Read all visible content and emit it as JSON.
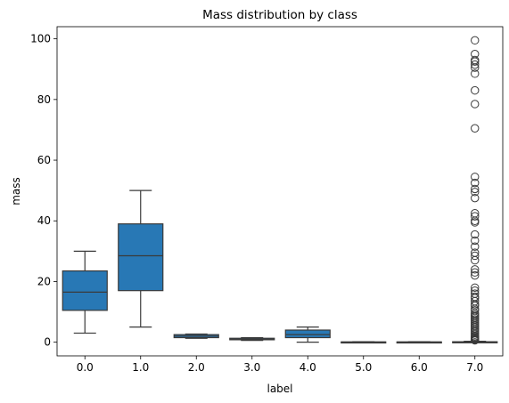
{
  "chart_data": {
    "type": "box",
    "title": "Mass distribution by class",
    "xlabel": "label",
    "ylabel": "mass",
    "categories": [
      "0.0",
      "1.0",
      "2.0",
      "3.0",
      "4.0",
      "5.0",
      "6.0",
      "7.0"
    ],
    "ylim": [
      -4.5,
      104
    ],
    "y_ticks": [
      0,
      20,
      40,
      60,
      80,
      100
    ],
    "y_tick_labels": [
      "0",
      "20",
      "40",
      "60",
      "80",
      "100"
    ],
    "grid": false,
    "legend": "none",
    "box_color": "#2878b5",
    "edge_color": "#3a3a3a",
    "boxes": [
      {
        "label": "0.0",
        "whisker_low": 3.0,
        "q1": 10.5,
        "median": 16.5,
        "q3": 23.5,
        "whisker_high": 30.0,
        "outliers": []
      },
      {
        "label": "1.0",
        "whisker_low": 5.0,
        "q1": 17.0,
        "median": 28.5,
        "q3": 39.0,
        "whisker_high": 50.0,
        "outliers": []
      },
      {
        "label": "2.0",
        "whisker_low": 1.3,
        "q1": 1.5,
        "median": 2.0,
        "q3": 2.5,
        "whisker_high": 2.7,
        "outliers": []
      },
      {
        "label": "3.0",
        "whisker_low": 0.6,
        "q1": 0.8,
        "median": 1.0,
        "q3": 1.3,
        "whisker_high": 1.5,
        "outliers": []
      },
      {
        "label": "4.0",
        "whisker_low": 0.0,
        "q1": 1.5,
        "median": 2.5,
        "q3": 4.0,
        "whisker_high": 5.0,
        "outliers": []
      },
      {
        "label": "5.0",
        "whisker_low": 0.0,
        "q1": 0.0,
        "median": 0.05,
        "q3": 0.1,
        "whisker_high": 0.15,
        "outliers": []
      },
      {
        "label": "6.0",
        "whisker_low": 0.0,
        "q1": 0.0,
        "median": 0.05,
        "q3": 0.1,
        "whisker_high": 0.15,
        "outliers": []
      },
      {
        "label": "7.0",
        "whisker_low": 0.0,
        "q1": 0.0,
        "median": 0.05,
        "q3": 0.15,
        "whisker_high": 0.3,
        "outliers": [
          99.5,
          95,
          93,
          92.5,
          91.5,
          90.5,
          88.5,
          83,
          78.5,
          70.5,
          54.5,
          52.5,
          50.5,
          49.5,
          47.5,
          42.5,
          41.5,
          40,
          39.5,
          35.5,
          33.5,
          31.5,
          29.5,
          28.5,
          27,
          24,
          23,
          22,
          18,
          17,
          16,
          15,
          14.5,
          13.5,
          12.5,
          12,
          11,
          10.5,
          9.5,
          9,
          8.5,
          8,
          7.5,
          7,
          6.5,
          6,
          5.5,
          5,
          4.5,
          4,
          3.5,
          3,
          2.5,
          2,
          1.7,
          1.5,
          1.2,
          1,
          0.8,
          0.6
        ]
      }
    ]
  }
}
